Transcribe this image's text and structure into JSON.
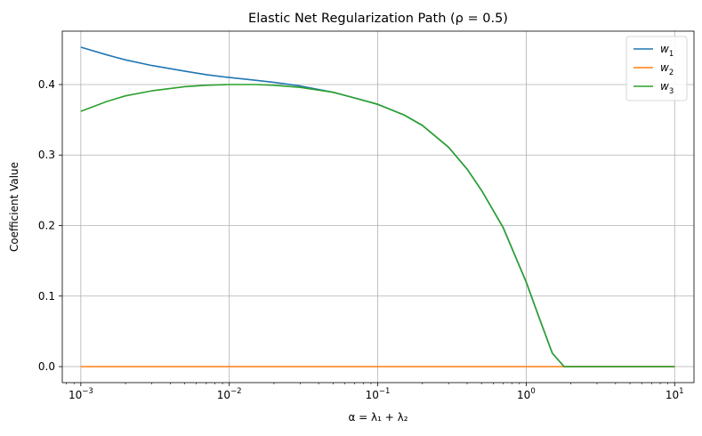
{
  "chart_data": {
    "type": "line",
    "title": "Elastic Net Regularization Path (ρ = 0.5)",
    "xlabel": "α = λ₁ + λ₂",
    "ylabel": "Coefficient Value",
    "x_scale": "log",
    "xlim": [
      0.00075,
      13.5
    ],
    "ylim": [
      -0.0227,
      0.4757
    ],
    "x_ticks": [
      {
        "value": 0.001,
        "base": "10",
        "exp": "−3"
      },
      {
        "value": 0.01,
        "base": "10",
        "exp": "−2"
      },
      {
        "value": 0.1,
        "base": "10",
        "exp": "−1"
      },
      {
        "value": 1,
        "base": "10",
        "exp": "0"
      },
      {
        "value": 10,
        "base": "10",
        "exp": "1"
      }
    ],
    "y_ticks": [
      "0.0",
      "0.1",
      "0.2",
      "0.3",
      "0.4"
    ],
    "grid": true,
    "legend_position": "top-right",
    "x": [
      0.001,
      0.0015,
      0.002,
      0.003,
      0.005,
      0.007,
      0.01,
      0.015,
      0.02,
      0.03,
      0.05,
      0.07,
      0.1,
      0.15,
      0.2,
      0.3,
      0.4,
      0.5,
      0.7,
      1.0,
      1.2,
      1.5,
      1.8,
      2.0,
      3.0,
      5.0,
      10.0
    ],
    "series": [
      {
        "name": "w",
        "sub": "1",
        "color": "#1f77b4",
        "values": [
          0.453,
          0.442,
          0.435,
          0.427,
          0.419,
          0.414,
          0.41,
          0.406,
          0.403,
          0.398,
          0.389,
          0.381,
          0.372,
          0.357,
          0.342,
          0.311,
          0.28,
          0.25,
          0.197,
          0.12,
          0.074,
          0.019,
          0.0,
          0.0,
          0.0,
          0.0,
          0.0
        ]
      },
      {
        "name": "w",
        "sub": "2",
        "color": "#ff7f0e",
        "values": [
          0.0,
          0.0,
          0.0,
          0.0,
          0.0,
          0.0,
          0.0,
          0.0,
          0.0,
          0.0,
          0.0,
          0.0,
          0.0,
          0.0,
          0.0,
          0.0,
          0.0,
          0.0,
          0.0,
          0.0,
          0.0,
          0.0,
          0.0,
          0.0,
          0.0,
          0.0,
          0.0
        ]
      },
      {
        "name": "w",
        "sub": "3",
        "color": "#2ca02c",
        "values": [
          0.362,
          0.376,
          0.384,
          0.391,
          0.397,
          0.399,
          0.4,
          0.4,
          0.399,
          0.396,
          0.389,
          0.381,
          0.372,
          0.357,
          0.342,
          0.311,
          0.28,
          0.25,
          0.197,
          0.12,
          0.074,
          0.019,
          0.0,
          0.0,
          0.0,
          0.0,
          0.0
        ]
      }
    ]
  }
}
